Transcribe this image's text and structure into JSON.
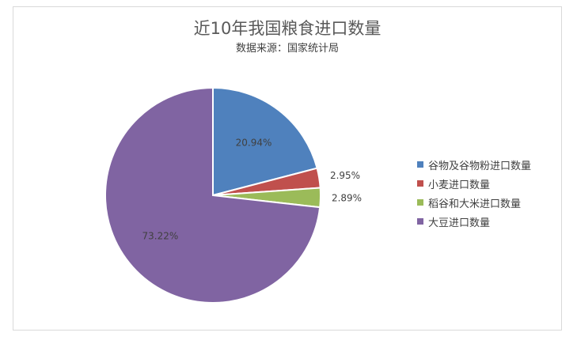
{
  "chart_data": {
    "type": "pie",
    "title": "近10年我国粮食进口数量",
    "subtitle": "数据来源：国家统计局",
    "legend_position": "right",
    "categories": [
      "谷物及谷物粉进口数量",
      "小麦进口数量",
      "稻谷和大米进口数量",
      "大豆进口数量"
    ],
    "values": [
      20.94,
      2.95,
      2.89,
      73.22
    ],
    "data_labels": [
      "20.94%",
      "2.95%",
      "2.89%",
      "73.22%"
    ],
    "colors": [
      "#4f81bd",
      "#c0504d",
      "#9bbb59",
      "#8064a2"
    ]
  }
}
